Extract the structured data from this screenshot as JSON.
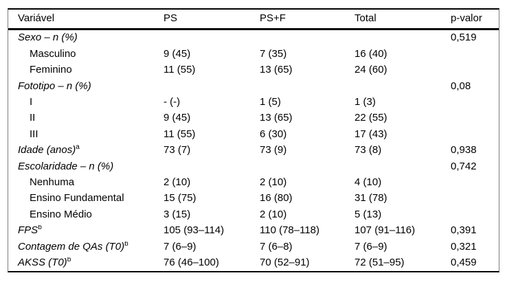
{
  "page": {
    "background_color": "#ffffff",
    "text_color": "#000000",
    "rule_color": "#000000",
    "side_border_color": "#7d7d7d"
  },
  "table": {
    "columns": [
      {
        "key": "label",
        "label": "Variável"
      },
      {
        "key": "ps",
        "label": "PS"
      },
      {
        "key": "psf",
        "label": "PS+F"
      },
      {
        "key": "total",
        "label": "Total"
      },
      {
        "key": "p",
        "label": "p-valor"
      }
    ],
    "rows": [
      {
        "label": "Sexo – n (%)",
        "italic": true,
        "indent": false,
        "sup": "",
        "ps": "",
        "psf": "",
        "total": "",
        "p": "0,519"
      },
      {
        "label": "Masculino",
        "italic": false,
        "indent": true,
        "sup": "",
        "ps": "9 (45)",
        "psf": "7 (35)",
        "total": "16 (40)",
        "p": ""
      },
      {
        "label": "Feminino",
        "italic": false,
        "indent": true,
        "sup": "",
        "ps": "11 (55)",
        "psf": "13 (65)",
        "total": "24 (60)",
        "p": ""
      },
      {
        "label": "Fototipo – n (%)",
        "italic": true,
        "indent": false,
        "sup": "",
        "ps": "",
        "psf": "",
        "total": "",
        "p": "0,08"
      },
      {
        "label": "I",
        "italic": false,
        "indent": true,
        "sup": "",
        "ps": "- (-)",
        "psf": "1 (5)",
        "total": "1 (3)",
        "p": ""
      },
      {
        "label": "II",
        "italic": false,
        "indent": true,
        "sup": "",
        "ps": "9 (45)",
        "psf": "13 (65)",
        "total": "22 (55)",
        "p": ""
      },
      {
        "label": "III",
        "italic": false,
        "indent": true,
        "sup": "",
        "ps": "11 (55)",
        "psf": "6 (30)",
        "total": "17 (43)",
        "p": ""
      },
      {
        "label": "Idade (anos)",
        "italic": true,
        "indent": false,
        "sup": "a",
        "ps": "73 (7)",
        "psf": "73 (9)",
        "total": "73 (8)",
        "p": "0,938"
      },
      {
        "label": "Escolaridade – n (%)",
        "italic": true,
        "indent": false,
        "sup": "",
        "ps": "",
        "psf": "",
        "total": "",
        "p": "0,742"
      },
      {
        "label": "Nenhuma",
        "italic": false,
        "indent": true,
        "sup": "",
        "ps": "2 (10)",
        "psf": "2 (10)",
        "total": "4 (10)",
        "p": ""
      },
      {
        "label": "Ensino Fundamental",
        "italic": false,
        "indent": true,
        "sup": "",
        "ps": "15 (75)",
        "psf": "16 (80)",
        "total": "31 (78)",
        "p": ""
      },
      {
        "label": "Ensino Médio",
        "italic": false,
        "indent": true,
        "sup": "",
        "ps": "3 (15)",
        "psf": "2 (10)",
        "total": "5 (13)",
        "p": ""
      },
      {
        "label": "FPS",
        "italic": true,
        "indent": false,
        "sup": "b",
        "ps": "105 (93–114)",
        "psf": "110 (78–118)",
        "total": "107 (91–116)",
        "p": "0,391"
      },
      {
        "label": "Contagem de QAs (T0)",
        "italic": true,
        "indent": false,
        "sup": "b",
        "ps": "7 (6–9)",
        "psf": "7 (6–8)",
        "total": "7 (6–9)",
        "p": "0,321"
      },
      {
        "label": "AKSS (T0)",
        "italic": true,
        "indent": false,
        "sup": "b",
        "ps": "76 (46–100)",
        "psf": "70 (52–91)",
        "total": "72 (51–95)",
        "p": "0,459"
      }
    ]
  }
}
